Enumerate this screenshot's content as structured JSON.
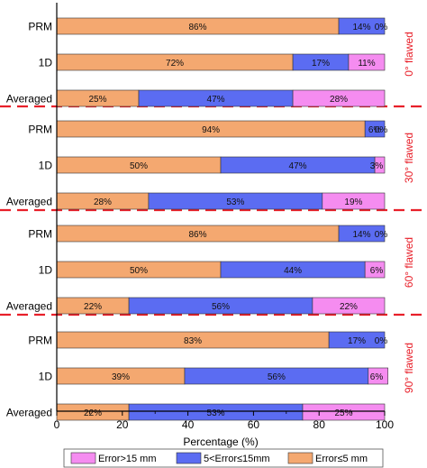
{
  "chart_data": {
    "type": "bar",
    "orientation": "horizontal",
    "stacked": true,
    "xlabel": "Percentage (%)",
    "xlim": [
      0,
      100
    ],
    "xticks": [
      "0",
      "20",
      "40",
      "60",
      "80",
      "100"
    ],
    "grid": false,
    "legend_position": "bottom",
    "series": [
      {
        "name": "Error≤5 mm",
        "color": "#F4A870"
      },
      {
        "name": "5<Error≤15mm",
        "color": "#5B6CF2"
      },
      {
        "name": "Error>15 mm",
        "color": "#F58CF0"
      }
    ],
    "legend_order": [
      2,
      1,
      0
    ],
    "groups": [
      {
        "label": "0° flawed",
        "bars": [
          {
            "category": "PRM",
            "values": [
              86,
              14,
              0
            ],
            "labels": [
              "86%",
              "14%",
              "0%"
            ]
          },
          {
            "category": "1D",
            "values": [
              72,
              17,
              11
            ],
            "labels": [
              "72%",
              "17%",
              "11%"
            ]
          },
          {
            "category": "Averaged",
            "values": [
              25,
              47,
              28
            ],
            "labels": [
              "25%",
              "47%",
              "28%"
            ]
          }
        ]
      },
      {
        "label": "30° flawed",
        "bars": [
          {
            "category": "PRM",
            "values": [
              94,
              6,
              0
            ],
            "labels": [
              "94%",
              "6%",
              "0%"
            ]
          },
          {
            "category": "1D",
            "values": [
              50,
              47,
              3
            ],
            "labels": [
              "50%",
              "47%",
              "3%"
            ]
          },
          {
            "category": "Averaged",
            "values": [
              28,
              53,
              19
            ],
            "labels": [
              "28%",
              "53%",
              "19%"
            ]
          }
        ]
      },
      {
        "label": "60° flawed",
        "bars": [
          {
            "category": "PRM",
            "values": [
              86,
              14,
              0
            ],
            "labels": [
              "86%",
              "14%",
              "0%"
            ]
          },
          {
            "category": "1D",
            "values": [
              50,
              44,
              6
            ],
            "labels": [
              "50%",
              "44%",
              "6%"
            ]
          },
          {
            "category": "Averaged",
            "values": [
              22,
              56,
              22
            ],
            "labels": [
              "22%",
              "56%",
              "22%"
            ]
          }
        ]
      },
      {
        "label": "90° flawed",
        "bars": [
          {
            "category": "PRM",
            "values": [
              83,
              17,
              0
            ],
            "labels": [
              "83%",
              "17%",
              "0%"
            ]
          },
          {
            "category": "1D",
            "values": [
              39,
              56,
              6
            ],
            "labels": [
              "39%",
              "56%",
              "6%"
            ]
          },
          {
            "category": "Averaged",
            "values": [
              22,
              53,
              25
            ],
            "labels": [
              "22%",
              "53%",
              "25%"
            ]
          }
        ]
      }
    ],
    "group_label_color": "#E8202A",
    "separator_color": "#E8202A"
  }
}
